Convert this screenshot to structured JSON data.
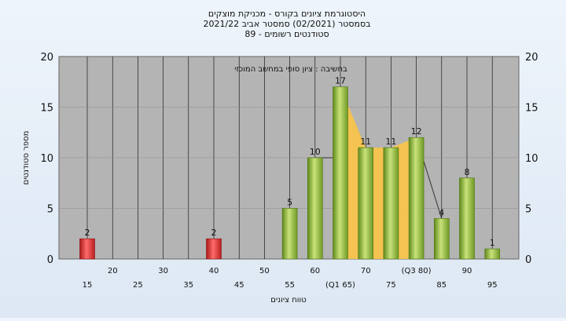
{
  "chart_data": {
    "type": "bar",
    "title_lines": [
      "היסטוגרמת ציונים בקורס - מכניקת מוצקים",
      "בסמסטר  (02/2021)  סמסטר אביב 2021/22",
      "סטודנטים רשומים - 89"
    ],
    "xlabel": "טווח ציונים",
    "ylabel": "מספר סטודנטים",
    "annotation": "בחשיבה : ציון סופי במחשב המוכזי",
    "ylim": [
      0,
      20
    ],
    "yticks": [
      0,
      5,
      10,
      15,
      20
    ],
    "x_ticks_low": [
      "15",
      "25",
      "35",
      "45",
      "55",
      "(Q1 65)",
      "75",
      "85",
      "95"
    ],
    "x_ticks_high": [
      "20",
      "30",
      "40",
      "50",
      "60",
      "70",
      "(Q3 80)",
      "90"
    ],
    "bins": [
      15,
      20,
      25,
      30,
      35,
      40,
      45,
      50,
      55,
      60,
      65,
      70,
      75,
      80,
      85,
      90,
      95
    ],
    "values": [
      2,
      0,
      0,
      0,
      0,
      2,
      0,
      0,
      5,
      10,
      17,
      11,
      11,
      12,
      4,
      8,
      1
    ],
    "data_labels": [
      "2",
      "",
      "",
      "",
      "",
      "2",
      "",
      "",
      "5",
      "10",
      "17",
      "11",
      "11",
      "12",
      "4",
      "8",
      "1"
    ],
    "highlight_color": "#e03030",
    "bar_color": "#8ab43e",
    "band_color": "#ffc640",
    "plot_bg": "#b4b4b4",
    "grid": true,
    "legend": "none"
  }
}
